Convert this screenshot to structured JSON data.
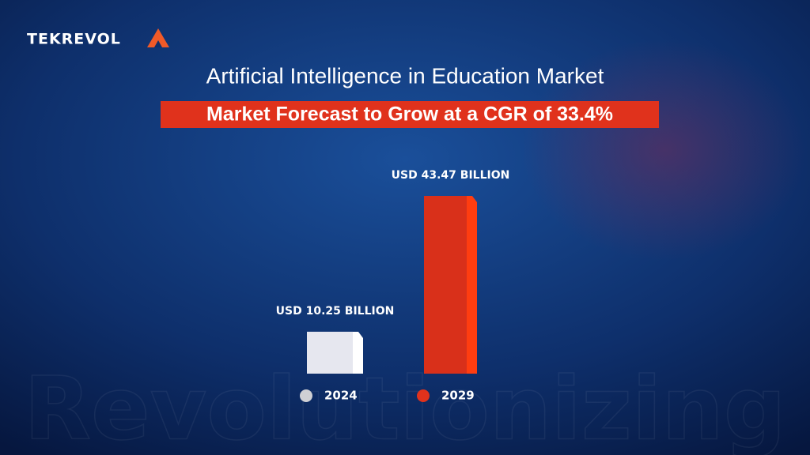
{
  "chart_data": {
    "type": "bar",
    "logo": "TEKREVOL",
    "title": "Artificial Intelligence in Education Market",
    "subtitle": "Market Forecast to Grow at a CGR of 33.4%",
    "watermark": "Revolutionizing",
    "categories": [
      "2024",
      "2029"
    ],
    "values": [
      10.25,
      43.47
    ],
    "value_labels": [
      "USD 10.25 BILLION",
      "USD 43.47 BILLION"
    ],
    "colors": [
      "#e6e7ef",
      "#d9301a"
    ],
    "legend_colors": [
      "#cfd0d4",
      "#e0321c"
    ]
  }
}
